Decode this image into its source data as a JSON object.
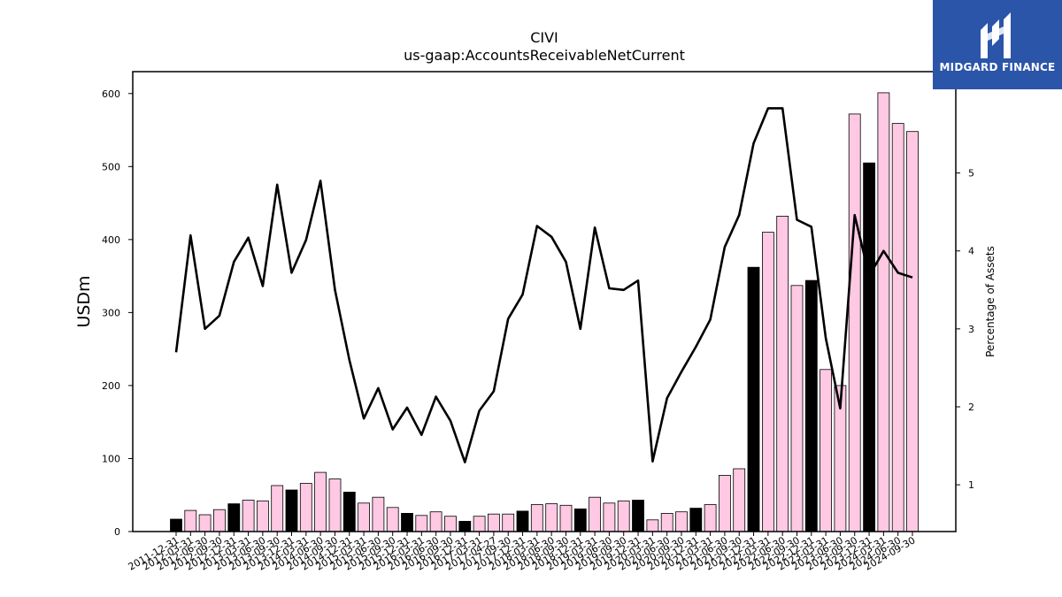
{
  "chart_data": {
    "type": "bar",
    "title": "CIVI",
    "subtitle": "us-gaap:AccountsReceivableNetCurrent",
    "ylabel": "USDm",
    "y2label": "Percentage of Assets",
    "ylim": [
      0,
      630
    ],
    "y2lim": [
      0.4,
      6.3
    ],
    "yticks": [
      0,
      100,
      200,
      300,
      400,
      500,
      600
    ],
    "y2ticks": [
      1,
      2,
      3,
      4,
      5
    ],
    "categories": [
      "2011-12-31",
      "2012-03-31",
      "2012-06-30",
      "2012-09-30",
      "2012-12-31",
      "2013-03-31",
      "2013-06-30",
      "2013-09-30",
      "2013-12-31",
      "2014-03-31",
      "2014-06-30",
      "2014-09-30",
      "2014-12-31",
      "2015-03-31",
      "2015-06-30",
      "2015-09-30",
      "2015-12-31",
      "2016-03-31",
      "2016-06-30",
      "2016-09-30",
      "2016-12-31",
      "2017-03-31",
      "2017-04-27",
      "2017-09-30",
      "2017-12-31",
      "2018-03-31",
      "2018-06-30",
      "2018-09-30",
      "2018-12-31",
      "2019-03-31",
      "2019-06-30",
      "2019-09-30",
      "2019-12-31",
      "2020-03-31",
      "2020-06-30",
      "2020-09-30",
      "2020-12-31",
      "2021-03-31",
      "2021-06-30",
      "2021-09-30",
      "2021-12-31",
      "2022-03-31",
      "2022-06-30",
      "2022-09-30",
      "2022-12-31",
      "2023-03-31",
      "2023-06-30",
      "2023-09-30",
      "2023-12-31",
      "2024-03-31",
      "2024-06-30",
      "2024-09-30"
    ],
    "series": [
      {
        "name": "",
        "kind": "bar",
        "axis": "left",
        "values": [
          17,
          29,
          23,
          30,
          38,
          43,
          42,
          63,
          57,
          66,
          81,
          72,
          54,
          39,
          47,
          33,
          25,
          22,
          27,
          21,
          14,
          21,
          24,
          24,
          28,
          37,
          38,
          36,
          31,
          47,
          39,
          42,
          43,
          16,
          25,
          27,
          32,
          37,
          77,
          86,
          362,
          410,
          432,
          337,
          344,
          222,
          200,
          572,
          505,
          601,
          559,
          548
        ],
        "colors": [
          "#000000",
          "#ffc8e3",
          "#ffc8e3",
          "#ffc8e3",
          "#000000",
          "#ffc8e3",
          "#ffc8e3",
          "#ffc8e3",
          "#000000",
          "#ffc8e3",
          "#ffc8e3",
          "#ffc8e3",
          "#000000",
          "#ffc8e3",
          "#ffc8e3",
          "#ffc8e3",
          "#000000",
          "#ffc8e3",
          "#ffc8e3",
          "#ffc8e3",
          "#000000",
          "#ffc8e3",
          "#ffc8e3",
          "#ffc8e3",
          "#000000",
          "#ffc8e3",
          "#ffc8e3",
          "#ffc8e3",
          "#000000",
          "#ffc8e3",
          "#ffc8e3",
          "#ffc8e3",
          "#000000",
          "#ffc8e3",
          "#ffc8e3",
          "#ffc8e3",
          "#000000",
          "#ffc8e3",
          "#ffc8e3",
          "#ffc8e3",
          "#000000",
          "#ffc8e3",
          "#ffc8e3",
          "#ffc8e3",
          "#000000",
          "#ffc8e3",
          "#ffc8e3",
          "#ffc8e3",
          "#000000",
          "#ffc8e3",
          "#ffc8e3",
          "#ffc8e3"
        ]
      },
      {
        "name": "",
        "kind": "line",
        "axis": "right",
        "color": "#000000",
        "values": [
          2.7,
          4.2,
          3.0,
          3.17,
          3.86,
          4.17,
          3.55,
          4.85,
          3.72,
          4.14,
          4.9,
          3.5,
          2.6,
          1.85,
          2.24,
          1.71,
          1.99,
          1.64,
          2.13,
          1.82,
          1.29,
          1.95,
          2.2,
          3.13,
          3.44,
          4.32,
          4.18,
          3.86,
          3.0,
          4.3,
          3.52,
          3.5,
          3.62,
          1.3,
          2.11,
          2.45,
          2.77,
          3.12,
          4.05,
          4.46,
          5.38,
          5.83,
          5.83,
          4.4,
          4.31,
          2.88,
          1.98,
          4.46,
          3.68,
          4.0,
          3.72,
          3.66
        ]
      }
    ],
    "legend": "none",
    "grid": false
  },
  "logo": {
    "text": "MIDGARD FINANCE",
    "bg": "#2b55a8"
  }
}
